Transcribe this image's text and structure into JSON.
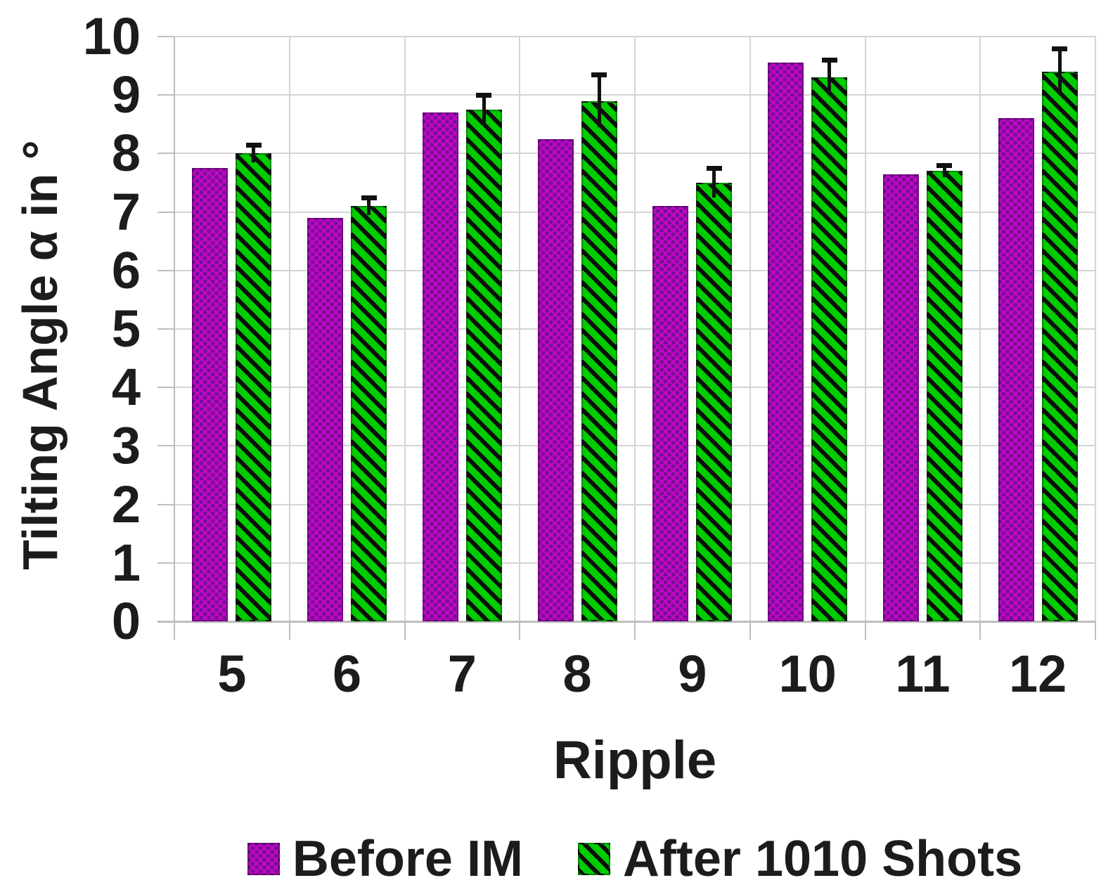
{
  "figure": {
    "background": "#FFFFFF"
  },
  "chart_data": {
    "type": "bar",
    "title": "",
    "xlabel": "Ripple",
    "ylabel": "Tilting Angle α in °",
    "categories": [
      "5",
      "6",
      "7",
      "8",
      "9",
      "10",
      "11",
      "12"
    ],
    "ylim": [
      0,
      10
    ],
    "y_ticks": [
      0,
      1,
      2,
      3,
      4,
      5,
      6,
      7,
      8,
      9,
      10
    ],
    "grid": {
      "horizontal": true,
      "vertical": true
    },
    "legend_position": "bottom",
    "series": [
      {
        "name": "Before IM",
        "pattern": "dots",
        "color": "#C404C8",
        "pattern_color": "#70128F",
        "values": [
          7.75,
          6.9,
          8.7,
          8.25,
          7.1,
          9.55,
          7.65,
          8.6
        ]
      },
      {
        "name": "After 1010 Shots",
        "pattern": "diagonal-hatch",
        "color": "#00CC00",
        "pattern_color": "#0D0D0D",
        "values": [
          8.0,
          7.1,
          8.75,
          8.9,
          7.5,
          9.3,
          7.7,
          9.4
        ],
        "error_bars": [
          0.15,
          0.15,
          0.25,
          0.45,
          0.25,
          0.3,
          0.1,
          0.4
        ]
      }
    ],
    "style": {
      "grid_color": "#D4D4D4",
      "axis_color": "#BEBEBE",
      "text_color": "#1C1C1C",
      "error_bar_color": "#111111"
    }
  }
}
